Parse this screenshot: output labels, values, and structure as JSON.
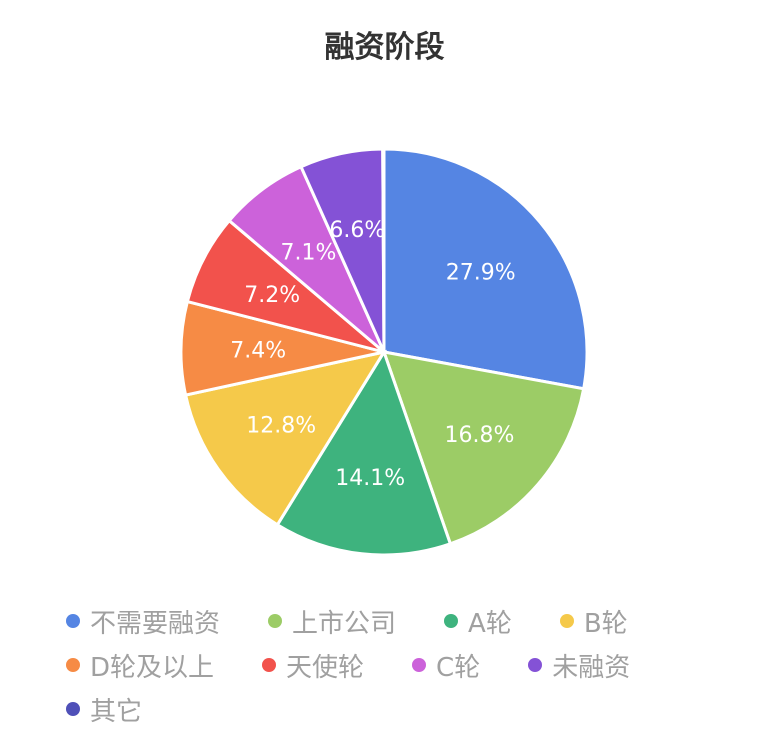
{
  "chart_data": {
    "type": "pie",
    "title": "融资阶段",
    "start": "top",
    "direction": "clockwise",
    "legend_position": "bottom",
    "slices": [
      {
        "name": "不需要融资",
        "value": 27.9,
        "label": "27.9%",
        "color": "#5585e3"
      },
      {
        "name": "上市公司",
        "value": 16.8,
        "label": "16.8%",
        "color": "#9ccc66"
      },
      {
        "name": "A轮",
        "value": 14.1,
        "label": "14.1%",
        "color": "#3eb37e"
      },
      {
        "name": "B轮",
        "value": 12.8,
        "label": "12.8%",
        "color": "#f5c94a"
      },
      {
        "name": "D轮及以上",
        "value": 7.4,
        "label": "7.4%",
        "color": "#f68b45"
      },
      {
        "name": "天使轮",
        "value": 7.2,
        "label": "7.2%",
        "color": "#f2524c"
      },
      {
        "name": "C轮",
        "value": 7.1,
        "label": "7.1%",
        "color": "#cc62da"
      },
      {
        "name": "未融资",
        "value": 6.6,
        "label": "6.6%",
        "color": "#8452d6"
      },
      {
        "name": "其它",
        "value": 0.1,
        "label": "",
        "color": "#4f50b8"
      }
    ]
  }
}
